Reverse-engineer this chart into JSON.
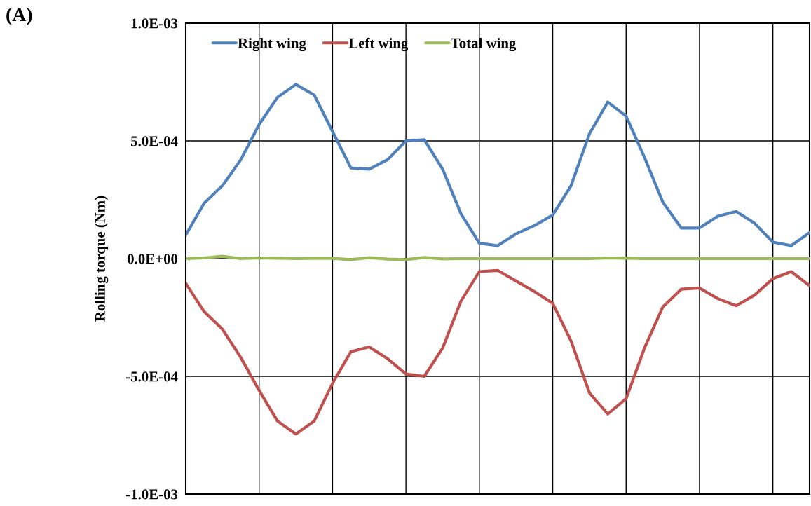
{
  "chart_data": {
    "type": "line",
    "ylabel": "Rolling torque (Nm)",
    "annotations": [
      "(A)"
    ],
    "categories": [
      null,
      null,
      null,
      null,
      null,
      null,
      null,
      null,
      null,
      null,
      null,
      null,
      null,
      null,
      null,
      null,
      null,
      null,
      null,
      null,
      null,
      null,
      null,
      null,
      null,
      null,
      null,
      null,
      null,
      null,
      null,
      null,
      null,
      null,
      null
    ],
    "ylim": [
      -0.001,
      0.001
    ],
    "yticks": [
      {
        "value": -0.001,
        "label": "-1.0E-03"
      },
      {
        "value": -0.0005,
        "label": "-5.0E-04"
      },
      {
        "value": 0,
        "label": "0.0E+00"
      },
      {
        "value": 0.0005,
        "label": "5.0E-04"
      },
      {
        "value": 0.001,
        "label": "1.0E-03"
      }
    ],
    "grid": true,
    "legend": "top left",
    "marker": "none",
    "line_style": "solid",
    "series": [
      {
        "name": "Right wing",
        "color": "#4f81bd",
        "values": [
          0.0001,
          0.000235,
          0.00031,
          0.00042,
          0.00057,
          0.000685,
          0.00074,
          0.000695,
          0.00054,
          0.000385,
          0.00038,
          0.00042,
          0.0005,
          0.000505,
          0.00038,
          0.00019,
          6.5e-05,
          5.5e-05,
          0.000105,
          0.00014,
          0.000185,
          0.00031,
          0.00053,
          0.000665,
          0.000605,
          0.00043,
          0.00024,
          0.00013,
          0.00013,
          0.00018,
          0.0002,
          0.00015,
          7e-05,
          5.5e-05,
          0.00011
        ]
      },
      {
        "name": "Left wing",
        "color": "#c0504d",
        "values": [
          -0.000105,
          -0.000225,
          -0.0003,
          -0.00042,
          -0.00056,
          -0.00069,
          -0.000745,
          -0.00069,
          -0.00053,
          -0.000395,
          -0.000375,
          -0.000425,
          -0.00049,
          -0.0005,
          -0.00038,
          -0.00018,
          -5.5e-05,
          -5e-05,
          -9.5e-05,
          -0.00014,
          -0.00019,
          -0.00035,
          -0.00057,
          -0.00066,
          -0.000595,
          -0.00038,
          -0.000205,
          -0.00013,
          -0.000125,
          -0.00017,
          -0.0002,
          -0.000155,
          -8.5e-05,
          -5.5e-05,
          -0.000115
        ]
      },
      {
        "name": "Total wing",
        "color": "#9bbb59",
        "values": [
          0,
          3e-06,
          1e-05,
          0,
          3e-06,
          2e-06,
          0,
          1e-06,
          1e-06,
          -4e-06,
          4e-06,
          -2e-06,
          -4e-06,
          5e-06,
          -1e-06,
          0,
          0,
          0,
          0,
          0,
          0,
          0,
          0,
          3e-06,
          2e-06,
          0,
          0,
          0,
          0,
          0,
          0,
          0,
          0,
          0,
          0
        ]
      }
    ]
  }
}
